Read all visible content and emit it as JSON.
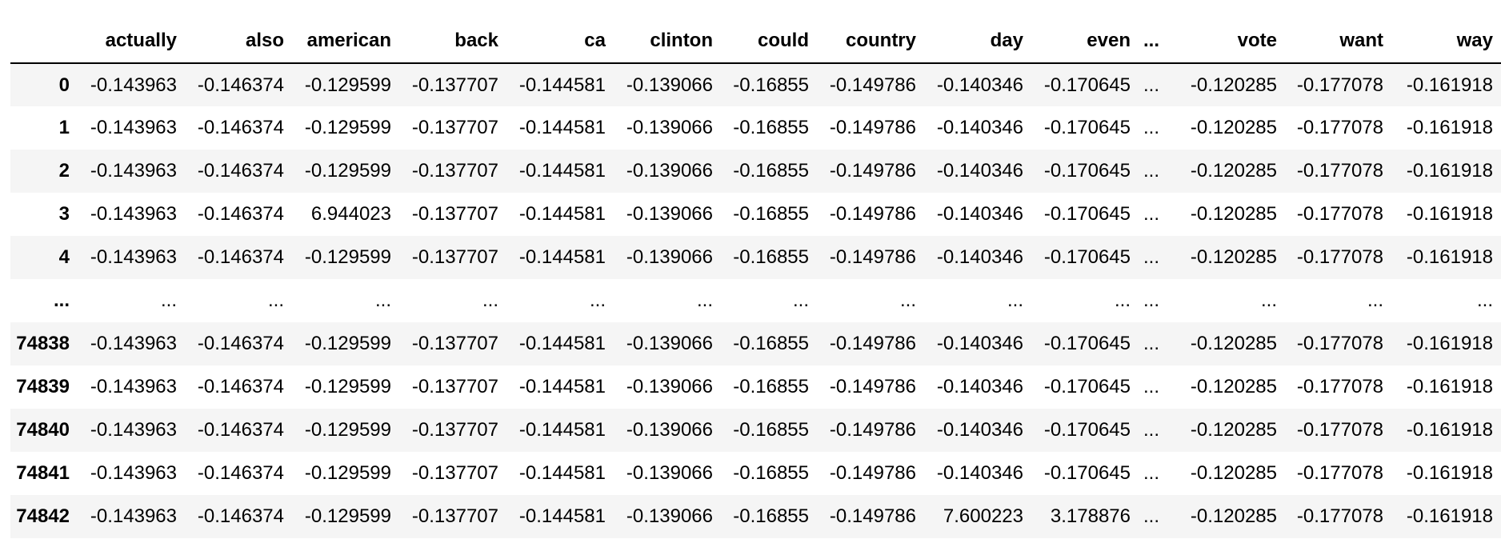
{
  "table": {
    "index_header": "",
    "columns": [
      "actually",
      "also",
      "american",
      "back",
      "ca",
      "clinton",
      "could",
      "country",
      "day",
      "even",
      "...",
      "vote",
      "want",
      "way"
    ],
    "rows": [
      {
        "index": "0",
        "cells": [
          "-0.143963",
          "-0.146374",
          "-0.129599",
          "-0.137707",
          "-0.144581",
          "-0.139066",
          "-0.16855",
          "-0.149786",
          "-0.140346",
          "-0.170645",
          "...",
          "-0.120285",
          "-0.177078",
          "-0.161918"
        ]
      },
      {
        "index": "1",
        "cells": [
          "-0.143963",
          "-0.146374",
          "-0.129599",
          "-0.137707",
          "-0.144581",
          "-0.139066",
          "-0.16855",
          "-0.149786",
          "-0.140346",
          "-0.170645",
          "...",
          "-0.120285",
          "-0.177078",
          "-0.161918"
        ]
      },
      {
        "index": "2",
        "cells": [
          "-0.143963",
          "-0.146374",
          "-0.129599",
          "-0.137707",
          "-0.144581",
          "-0.139066",
          "-0.16855",
          "-0.149786",
          "-0.140346",
          "-0.170645",
          "...",
          "-0.120285",
          "-0.177078",
          "-0.161918"
        ]
      },
      {
        "index": "3",
        "cells": [
          "-0.143963",
          "-0.146374",
          "6.944023",
          "-0.137707",
          "-0.144581",
          "-0.139066",
          "-0.16855",
          "-0.149786",
          "-0.140346",
          "-0.170645",
          "...",
          "-0.120285",
          "-0.177078",
          "-0.161918"
        ]
      },
      {
        "index": "4",
        "cells": [
          "-0.143963",
          "-0.146374",
          "-0.129599",
          "-0.137707",
          "-0.144581",
          "-0.139066",
          "-0.16855",
          "-0.149786",
          "-0.140346",
          "-0.170645",
          "...",
          "-0.120285",
          "-0.177078",
          "-0.161918"
        ]
      },
      {
        "index": "...",
        "cells": [
          "...",
          "...",
          "...",
          "...",
          "...",
          "...",
          "...",
          "...",
          "...",
          "...",
          "...",
          "...",
          "...",
          "..."
        ]
      },
      {
        "index": "74838",
        "cells": [
          "-0.143963",
          "-0.146374",
          "-0.129599",
          "-0.137707",
          "-0.144581",
          "-0.139066",
          "-0.16855",
          "-0.149786",
          "-0.140346",
          "-0.170645",
          "...",
          "-0.120285",
          "-0.177078",
          "-0.161918"
        ]
      },
      {
        "index": "74839",
        "cells": [
          "-0.143963",
          "-0.146374",
          "-0.129599",
          "-0.137707",
          "-0.144581",
          "-0.139066",
          "-0.16855",
          "-0.149786",
          "-0.140346",
          "-0.170645",
          "...",
          "-0.120285",
          "-0.177078",
          "-0.161918"
        ]
      },
      {
        "index": "74840",
        "cells": [
          "-0.143963",
          "-0.146374",
          "-0.129599",
          "-0.137707",
          "-0.144581",
          "-0.139066",
          "-0.16855",
          "-0.149786",
          "-0.140346",
          "-0.170645",
          "...",
          "-0.120285",
          "-0.177078",
          "-0.161918"
        ]
      },
      {
        "index": "74841",
        "cells": [
          "-0.143963",
          "-0.146374",
          "-0.129599",
          "-0.137707",
          "-0.144581",
          "-0.139066",
          "-0.16855",
          "-0.149786",
          "-0.140346",
          "-0.170645",
          "...",
          "-0.120285",
          "-0.177078",
          "-0.161918"
        ]
      },
      {
        "index": "74842",
        "cells": [
          "-0.143963",
          "-0.146374",
          "-0.129599",
          "-0.137707",
          "-0.144581",
          "-0.139066",
          "-0.16855",
          "-0.149786",
          "7.600223",
          "3.178876",
          "...",
          "-0.120285",
          "-0.177078",
          "-0.161918"
        ]
      }
    ]
  }
}
